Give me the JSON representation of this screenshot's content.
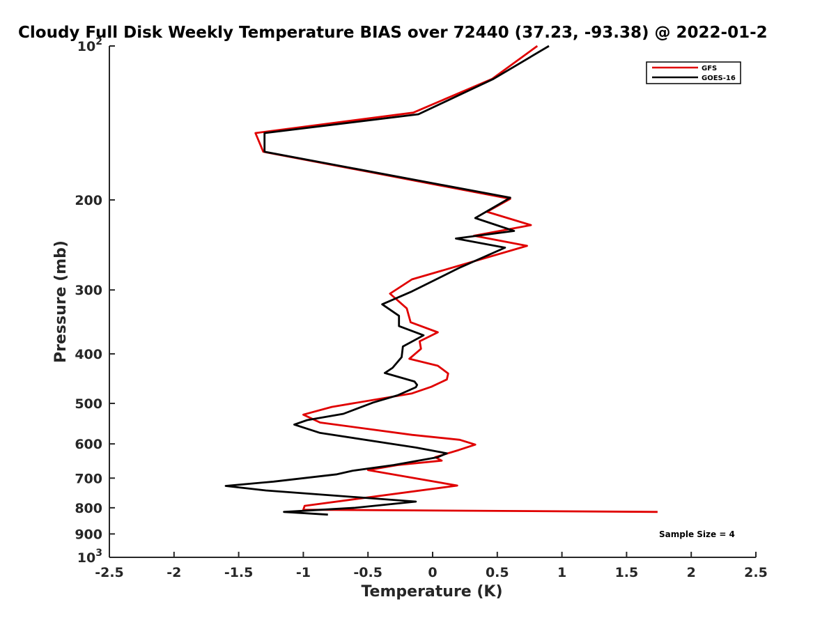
{
  "chart_data": {
    "type": "line",
    "title": "Cloudy Full Disk Weekly Temperature BIAS over 72440 (37.23, -93.38) @ 2022-01-2",
    "xlabel": "Temperature (K)",
    "ylabel": "Pressure (mb)",
    "xlim": [
      -2.5,
      2.5
    ],
    "ylim": [
      1000,
      100
    ],
    "yscale": "log",
    "y_reversed": true,
    "grid": false,
    "legend_position": "top-right",
    "x_ticks": [
      {
        "value": -2.5,
        "label": "-2.5"
      },
      {
        "value": -2,
        "label": "-2"
      },
      {
        "value": -1.5,
        "label": "-1.5"
      },
      {
        "value": -1,
        "label": "-1"
      },
      {
        "value": -0.5,
        "label": "-0.5"
      },
      {
        "value": 0,
        "label": "0"
      },
      {
        "value": 0.5,
        "label": "0.5"
      },
      {
        "value": 1,
        "label": "1"
      },
      {
        "value": 1.5,
        "label": "1.5"
      },
      {
        "value": 2,
        "label": "2"
      },
      {
        "value": 2.5,
        "label": "2.5"
      }
    ],
    "y_ticks": [
      {
        "value": 100,
        "base": "10",
        "exp": "2"
      },
      {
        "value": 200,
        "label": "200"
      },
      {
        "value": 300,
        "label": "300"
      },
      {
        "value": 400,
        "label": "400"
      },
      {
        "value": 500,
        "label": "500"
      },
      {
        "value": 600,
        "label": "600"
      },
      {
        "value": 700,
        "label": "700"
      },
      {
        "value": 800,
        "label": "800"
      },
      {
        "value": 900,
        "label": "900"
      },
      {
        "value": 1000,
        "base": "10",
        "exp": "3"
      }
    ],
    "series": [
      {
        "name": "GFS",
        "color": "#e00000",
        "points": [
          [
            0.81,
            100
          ],
          [
            0.46,
            116
          ],
          [
            -0.15,
            135
          ],
          [
            -1.37,
            148
          ],
          [
            -1.31,
            161
          ],
          [
            0.6,
            199
          ],
          [
            0.42,
            211
          ],
          [
            0.76,
            224
          ],
          [
            0.32,
            235
          ],
          [
            0.73,
            246
          ],
          [
            -0.16,
            286
          ],
          [
            -0.33,
            305
          ],
          [
            -0.2,
            326
          ],
          [
            -0.17,
            347
          ],
          [
            0.04,
            363
          ],
          [
            -0.1,
            378
          ],
          [
            -0.09,
            391
          ],
          [
            -0.18,
            409
          ],
          [
            0.04,
            422
          ],
          [
            0.12,
            437
          ],
          [
            0.11,
            449
          ],
          [
            -0.01,
            464
          ],
          [
            -0.16,
            478
          ],
          [
            -0.78,
            508
          ],
          [
            -1.0,
            526
          ],
          [
            -0.87,
            545
          ],
          [
            -0.16,
            576
          ],
          [
            0.21,
            589
          ],
          [
            0.33,
            602
          ],
          [
            0.2,
            617
          ],
          [
            0.02,
            637
          ],
          [
            0.07,
            647
          ],
          [
            -0.27,
            660
          ],
          [
            -0.5,
            675
          ],
          [
            0.19,
            724
          ],
          [
            -0.99,
            793
          ],
          [
            -1.0,
            807
          ],
          [
            1.74,
            815
          ]
        ]
      },
      {
        "name": "GOES-16",
        "color": "#000000",
        "points": [
          [
            0.9,
            100
          ],
          [
            0.47,
            116
          ],
          [
            -0.11,
            136
          ],
          [
            -1.3,
            148
          ],
          [
            -1.3,
            161
          ],
          [
            0.6,
            198
          ],
          [
            0.33,
            217
          ],
          [
            0.63,
            230
          ],
          [
            0.18,
            238
          ],
          [
            0.56,
            248
          ],
          [
            0.2,
            272
          ],
          [
            -0.16,
            302
          ],
          [
            -0.39,
            320
          ],
          [
            -0.26,
            337
          ],
          [
            -0.26,
            353
          ],
          [
            -0.07,
            368
          ],
          [
            -0.23,
            387
          ],
          [
            -0.24,
            406
          ],
          [
            -0.31,
            426
          ],
          [
            -0.37,
            436
          ],
          [
            -0.14,
            453
          ],
          [
            -0.12,
            460
          ],
          [
            -0.13,
            465
          ],
          [
            -0.27,
            482
          ],
          [
            -0.46,
            498
          ],
          [
            -0.69,
            524
          ],
          [
            -0.97,
            539
          ],
          [
            -1.07,
            550
          ],
          [
            -0.87,
            571
          ],
          [
            -0.13,
            610
          ],
          [
            0.11,
            626
          ],
          [
            0.04,
            637
          ],
          [
            -0.3,
            660
          ],
          [
            -0.62,
            677
          ],
          [
            -0.74,
            688
          ],
          [
            -1.23,
            711
          ],
          [
            -1.6,
            725
          ],
          [
            -1.29,
            740
          ],
          [
            -0.13,
            778
          ],
          [
            -0.6,
            800
          ],
          [
            -1.15,
            815
          ],
          [
            -0.81,
            825
          ]
        ]
      }
    ],
    "annotation": "Sample Size = 4"
  }
}
